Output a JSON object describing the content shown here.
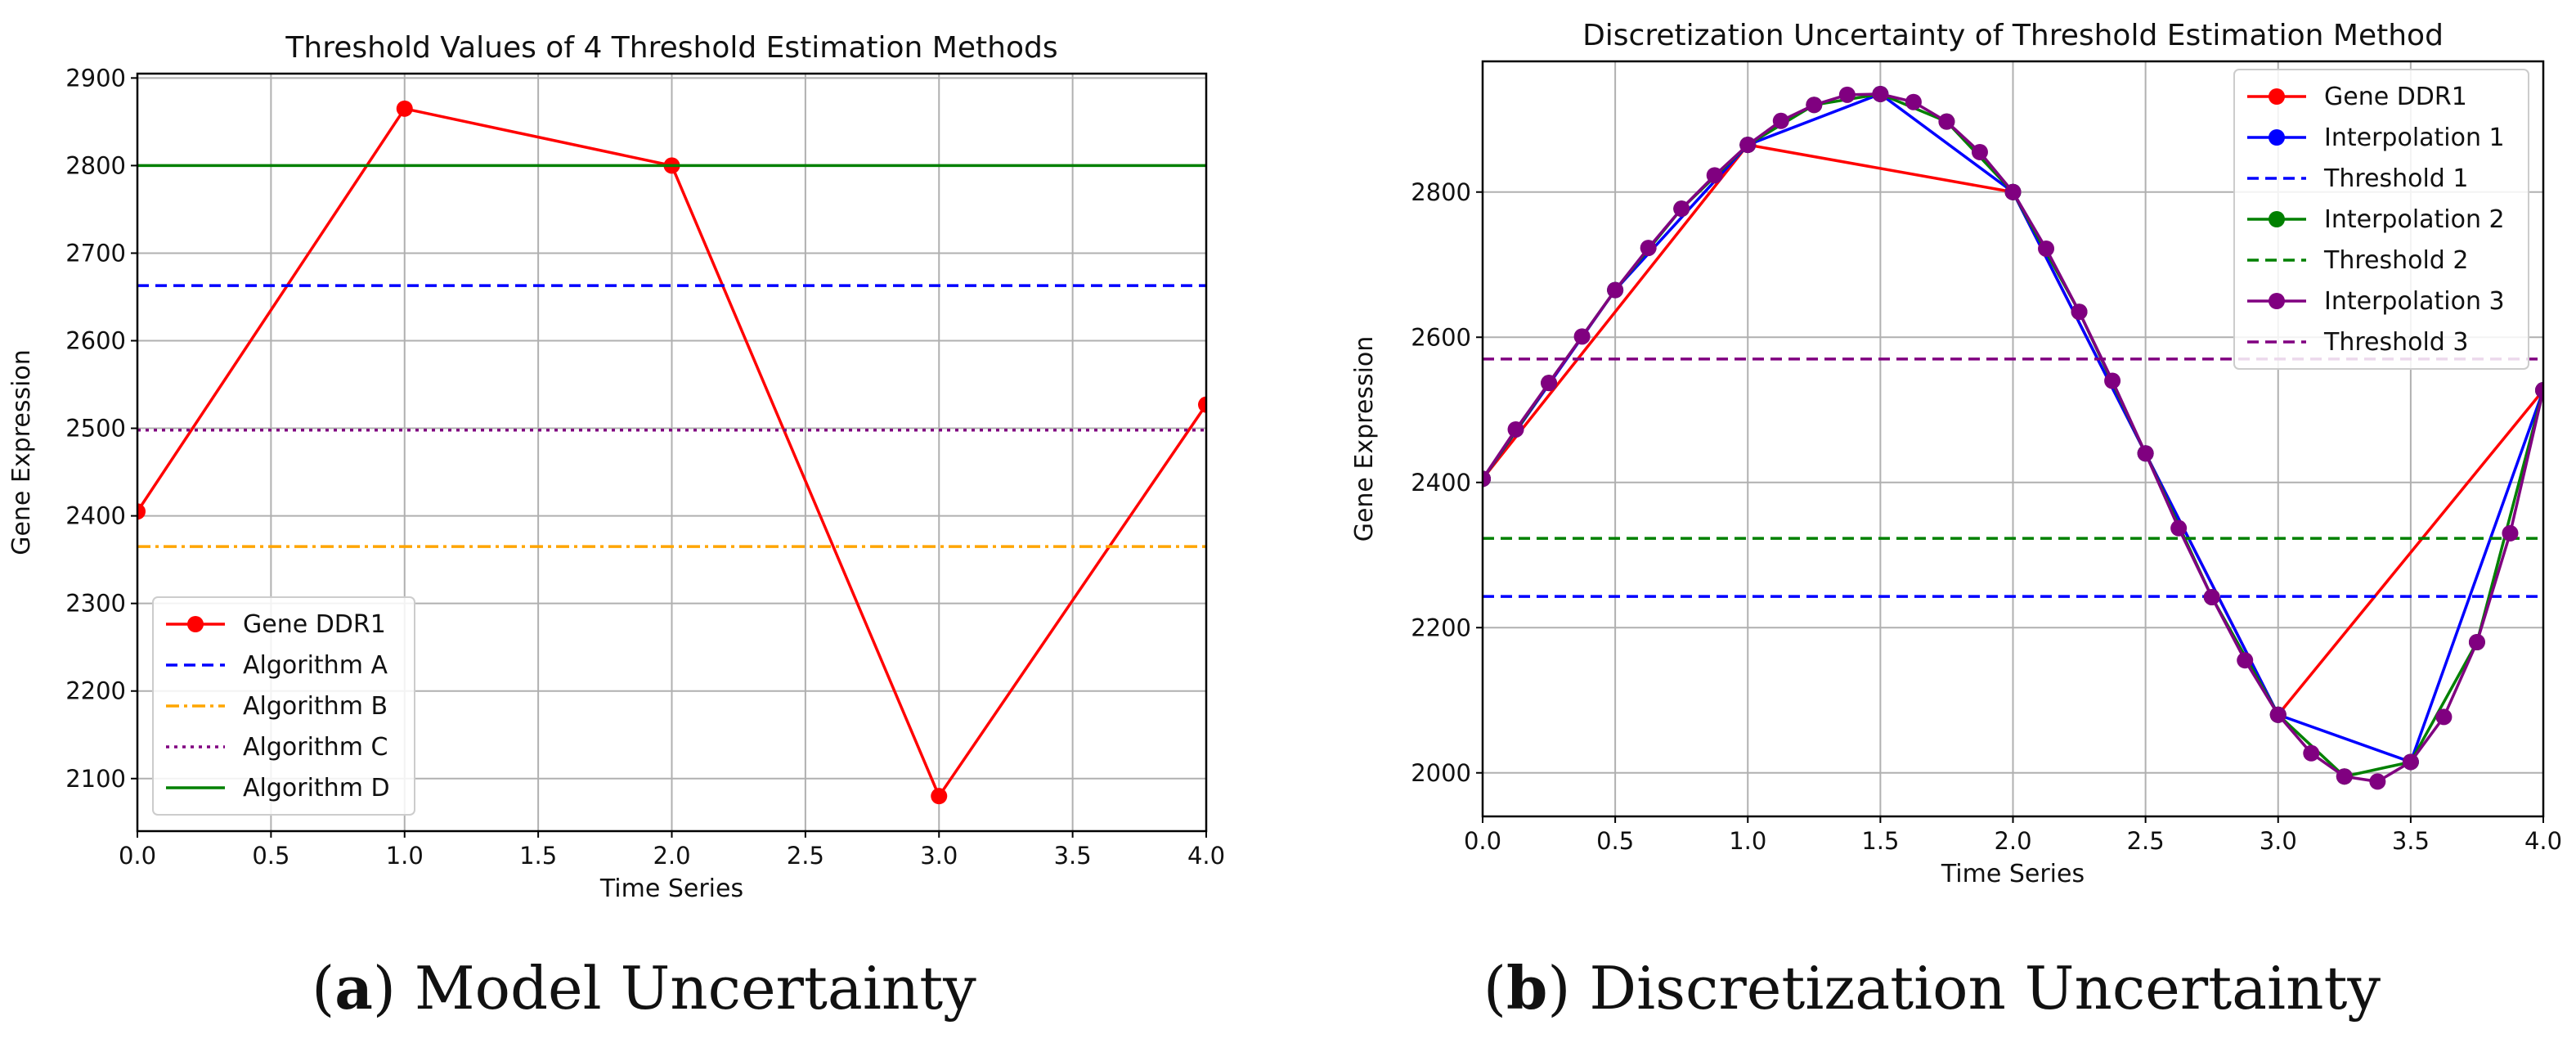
{
  "chart_data": [
    {
      "type": "line",
      "title": "Threshold Values of 4 Threshold Estimation Methods",
      "xlabel": "Time Series",
      "ylabel": "Gene Expression",
      "xlim": [
        0,
        4
      ],
      "ylim": [
        2040,
        2905
      ],
      "xticks": [
        "0.0",
        "0.5",
        "1.0",
        "1.5",
        "2.0",
        "2.5",
        "3.0",
        "3.5",
        "4.0"
      ],
      "yticks": [
        "2100",
        "2200",
        "2300",
        "2400",
        "2500",
        "2600",
        "2700",
        "2800",
        "2900"
      ],
      "grid": true,
      "legend_position": "lower-left",
      "caption_letter": "a",
      "caption_text": "Model Uncertainty",
      "series": [
        {
          "name": "Gene DDR1",
          "kind": "line",
          "color": "#ff0000",
          "dash": "none",
          "marker": true,
          "x": [
            0,
            1,
            2,
            3,
            4
          ],
          "y": [
            2405,
            2865,
            2800,
            2080,
            2527
          ]
        },
        {
          "name": "Algorithm A",
          "kind": "hline",
          "color": "#0000ff",
          "dash": "dashed",
          "value": 2663
        },
        {
          "name": "Algorithm B",
          "kind": "hline",
          "color": "#ffa500",
          "dash": "dashdot",
          "value": 2365
        },
        {
          "name": "Algorithm C",
          "kind": "hline",
          "color": "#800080",
          "dash": "dotted",
          "value": 2498
        },
        {
          "name": "Algorithm D",
          "kind": "hline",
          "color": "#008000",
          "dash": "none",
          "value": 2800
        }
      ]
    },
    {
      "type": "line",
      "title": "Discretization Uncertainty of Threshold Estimation Method",
      "xlabel": "Time Series",
      "ylabel": "Gene Expression",
      "xlim": [
        0,
        4
      ],
      "ylim": [
        1940,
        2980
      ],
      "xticks": [
        "0.0",
        "0.5",
        "1.0",
        "1.5",
        "2.0",
        "2.5",
        "3.0",
        "3.5",
        "4.0"
      ],
      "yticks": [
        "2000",
        "2200",
        "2400",
        "2600",
        "2800"
      ],
      "grid": true,
      "legend_position": "upper-right",
      "caption_letter": "b",
      "caption_text": "Discretization Uncertainty",
      "series": [
        {
          "name": "Gene DDR1",
          "kind": "line",
          "color": "#ff0000",
          "dash": "none",
          "marker": true,
          "x": [
            0,
            1,
            2,
            3,
            4
          ],
          "y": [
            2405,
            2865,
            2800,
            2080,
            2527
          ]
        },
        {
          "name": "Interpolation 1",
          "kind": "line",
          "color": "#0000ff",
          "dash": "none",
          "marker": true,
          "x": [
            0,
            0.5,
            1,
            1.5,
            2,
            2.5,
            3,
            3.5,
            4
          ],
          "y": [
            2405,
            2665,
            2865,
            2935,
            2800,
            2440,
            2080,
            2015,
            2527
          ]
        },
        {
          "name": "Threshold 1",
          "kind": "hline",
          "color": "#0000ff",
          "dash": "dashed",
          "value": 2243
        },
        {
          "name": "Interpolation 2",
          "kind": "line",
          "color": "#008000",
          "dash": "none",
          "marker": true,
          "x": [
            0,
            0.25,
            0.5,
            0.75,
            1,
            1.25,
            1.5,
            1.75,
            2,
            2.25,
            2.5,
            2.75,
            3,
            3.25,
            3.5,
            3.75,
            4
          ],
          "y": [
            2405,
            2537,
            2665,
            2777,
            2865,
            2920,
            2935,
            2897,
            2800,
            2635,
            2440,
            2242,
            2080,
            1995,
            2015,
            2180,
            2527
          ]
        },
        {
          "name": "Threshold 2",
          "kind": "hline",
          "color": "#008000",
          "dash": "dashed",
          "value": 2323
        },
        {
          "name": "Interpolation 3",
          "kind": "line",
          "color": "#800080",
          "dash": "none",
          "marker": true,
          "x": [
            0,
            0.125,
            0.25,
            0.375,
            0.5,
            0.625,
            0.75,
            0.875,
            1,
            1.125,
            1.25,
            1.375,
            1.5,
            1.625,
            1.75,
            1.875,
            2,
            2.125,
            2.25,
            2.375,
            2.5,
            2.625,
            2.75,
            2.875,
            3,
            3.125,
            3.25,
            3.375,
            3.5,
            3.625,
            3.75,
            3.875,
            4
          ],
          "y": [
            2405,
            2473,
            2537,
            2601,
            2665,
            2723,
            2777,
            2823,
            2865,
            2898,
            2920,
            2934,
            2935,
            2924,
            2897,
            2855,
            2800,
            2722,
            2635,
            2540,
            2440,
            2337,
            2242,
            2155,
            2080,
            2027,
            1995,
            1988,
            2015,
            2077,
            2180,
            2330,
            2527
          ]
        },
        {
          "name": "Threshold 3",
          "kind": "hline",
          "color": "#800080",
          "dash": "dashed",
          "value": 2570
        }
      ]
    }
  ]
}
